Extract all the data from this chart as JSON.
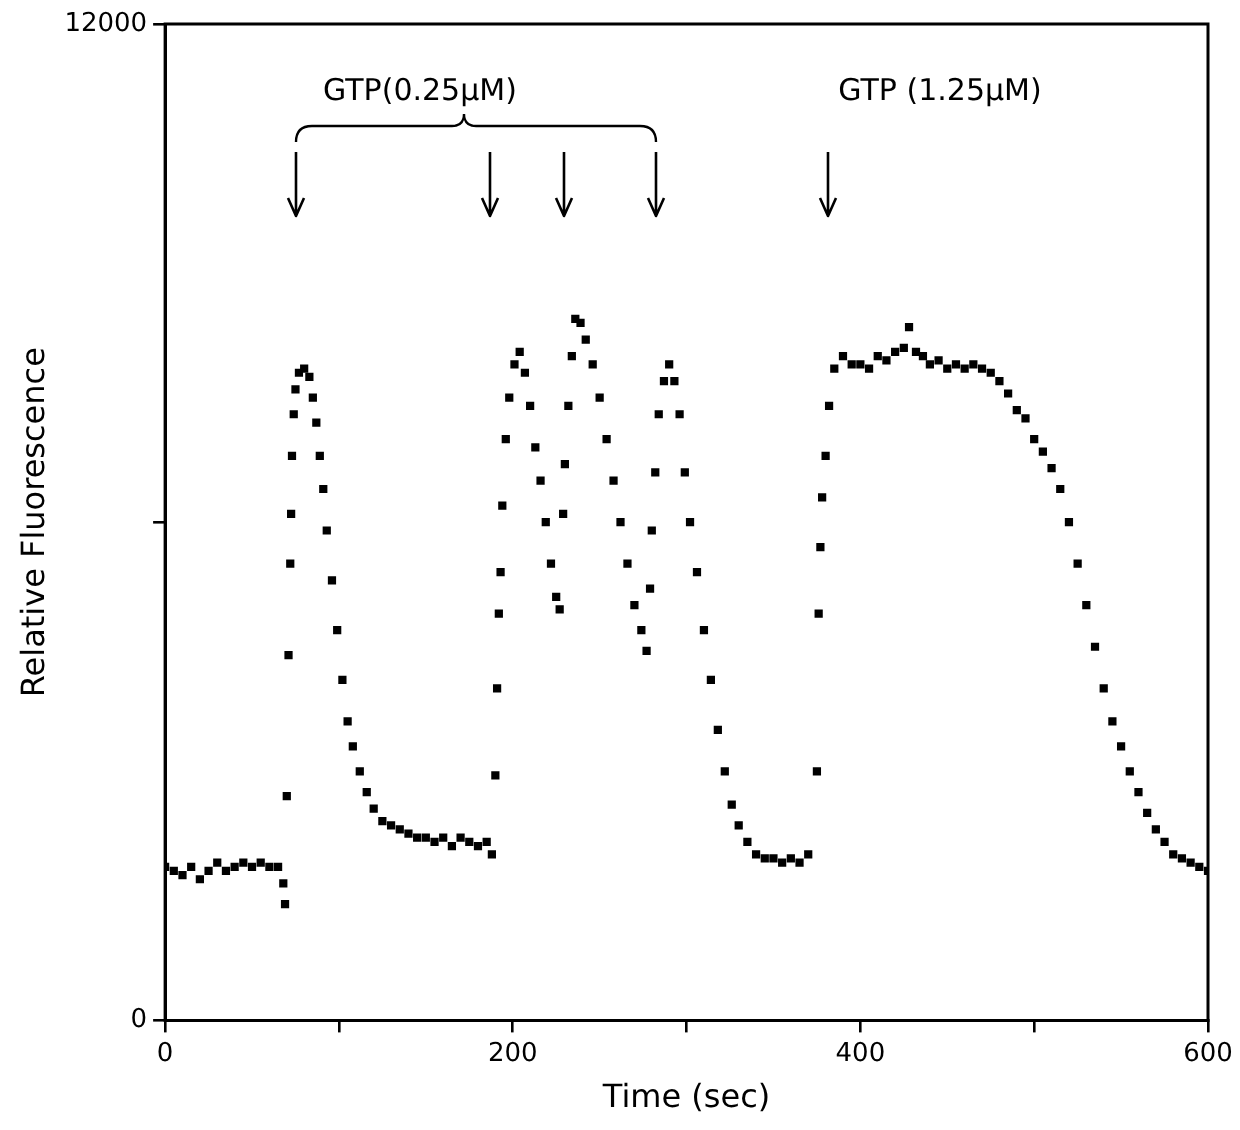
{
  "chart_data": {
    "type": "scatter",
    "xlabel": "Time (sec)",
    "ylabel": "Relative Fluorescence",
    "xlim": [
      0,
      600
    ],
    "ylim": [
      0,
      12000
    ],
    "xticks": [
      0,
      {
        "value": 100,
        "label": null
      },
      200,
      {
        "value": 300,
        "label": null
      },
      400,
      {
        "value": 500,
        "label": null
      },
      600
    ],
    "yticks": [
      0,
      {
        "value": 6000,
        "label": null
      },
      12000
    ],
    "grid": false,
    "legend": false,
    "marker": "square",
    "annotations": [
      "GTP(0.25μM)",
      "GTP (1.25μM)"
    ],
    "series": [
      {
        "color": "#000000",
        "x": [
          0,
          5,
          10,
          15,
          20,
          25,
          30,
          35,
          40,
          45,
          50,
          55,
          60,
          65,
          68,
          69,
          70,
          71,
          72,
          72.5,
          73,
          74,
          75,
          77,
          80,
          83,
          85,
          87,
          89,
          91,
          93,
          96,
          99,
          102,
          105,
          108,
          112,
          116,
          120,
          125,
          130,
          135,
          140,
          145,
          150,
          155,
          160,
          165,
          170,
          175,
          180,
          185,
          188,
          190,
          191,
          192,
          193,
          194,
          196,
          198,
          201,
          204,
          207,
          210,
          213,
          216,
          219,
          222,
          225,
          227,
          229,
          230,
          232,
          234,
          236,
          239,
          242,
          246,
          250,
          254,
          258,
          262,
          266,
          270,
          274,
          277,
          279,
          280,
          282,
          284,
          287,
          290,
          293,
          296,
          299,
          302,
          306,
          310,
          314,
          318,
          322,
          326,
          330,
          335,
          340,
          345,
          350,
          355,
          360,
          365,
          370,
          375,
          376,
          377,
          378,
          380,
          382,
          385,
          390,
          395,
          400,
          405,
          410,
          415,
          420,
          425,
          428,
          432,
          436,
          440,
          445,
          450,
          455,
          460,
          465,
          470,
          475,
          480,
          485,
          490,
          495,
          500,
          505,
          510,
          515,
          520,
          525,
          530,
          535,
          540,
          545,
          550,
          555,
          560,
          565,
          570,
          575,
          580,
          585,
          590,
          595,
          600
        ],
        "values": [
          1850,
          1800,
          1750,
          1850,
          1700,
          1800,
          1900,
          1800,
          1850,
          1900,
          1850,
          1900,
          1850,
          1850,
          1650,
          1400,
          2700,
          4400,
          5500,
          6100,
          6800,
          7300,
          7600,
          7800,
          7850,
          7750,
          7500,
          7200,
          6800,
          6400,
          5900,
          5300,
          4700,
          4100,
          3600,
          3300,
          3000,
          2750,
          2550,
          2400,
          2350,
          2300,
          2250,
          2200,
          2200,
          2150,
          2200,
          2100,
          2200,
          2150,
          2100,
          2150,
          2000,
          2950,
          4000,
          4900,
          5400,
          6200,
          7000,
          7500,
          7900,
          8050,
          7800,
          7400,
          6900,
          6500,
          6000,
          5500,
          5100,
          4950,
          6100,
          6700,
          7400,
          8000,
          8450,
          8400,
          8200,
          7900,
          7500,
          7000,
          6500,
          6000,
          5500,
          5000,
          4700,
          4450,
          5200,
          5900,
          6600,
          7300,
          7700,
          7900,
          7700,
          7300,
          6600,
          6000,
          5400,
          4700,
          4100,
          3500,
          3000,
          2600,
          2350,
          2150,
          2000,
          1950,
          1950,
          1900,
          1950,
          1900,
          2000,
          3000,
          4900,
          5700,
          6300,
          6800,
          7400,
          7850,
          8000,
          7900,
          7900,
          7850,
          8000,
          7950,
          8050,
          8100,
          8350,
          8050,
          8000,
          7900,
          7950,
          7850,
          7900,
          7850,
          7900,
          7850,
          7800,
          7700,
          7550,
          7350,
          7250,
          7000,
          6850,
          6650,
          6400,
          6000,
          5500,
          5000,
          4500,
          4000,
          3600,
          3300,
          3000,
          2750,
          2500,
          2300,
          2150,
          2000,
          1950,
          1900,
          1850,
          1800
        ]
      }
    ]
  }
}
